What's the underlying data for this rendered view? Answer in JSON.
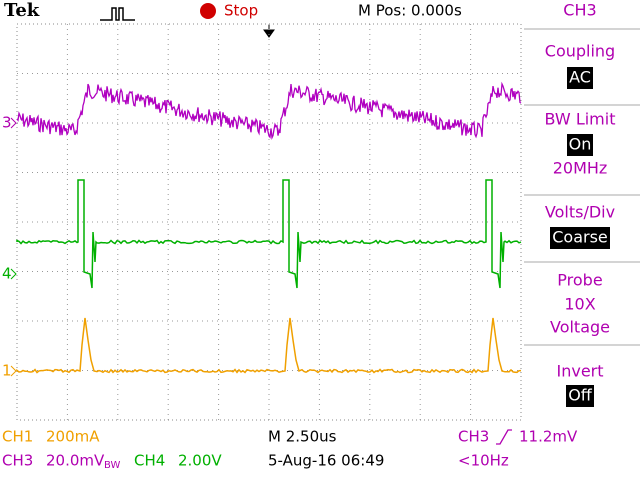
{
  "header": {
    "brand": "Tek",
    "state": "Stop",
    "position": "M Pos: 0.000s"
  },
  "menu": {
    "title": "CH3",
    "coupling": {
      "label": "Coupling",
      "value": "AC"
    },
    "bw_limit": {
      "label": "BW Limit",
      "value": "On",
      "detail": "20MHz"
    },
    "volts_div": {
      "label": "Volts/Div",
      "value": "Coarse"
    },
    "probe": {
      "label": "Probe",
      "value": "10X",
      "detail": "Voltage"
    },
    "invert": {
      "label": "Invert",
      "value": "Off"
    }
  },
  "markers": {
    "ch3": "3",
    "ch4": "4",
    "ch1": "1"
  },
  "status": {
    "ch1_name": "CH1",
    "ch1_scale": "200mA",
    "ch3_name": "CH3",
    "ch3_scale": "20.0mV",
    "ch3_bw": "BW",
    "ch4_name": "CH4",
    "ch4_scale": "2.00V",
    "timebase": "M 2.50us",
    "datetime": "5-Aug-16 06:49",
    "trigger_source": "CH3",
    "trigger_level": "11.2mV",
    "frequency": "<10Hz"
  }
}
